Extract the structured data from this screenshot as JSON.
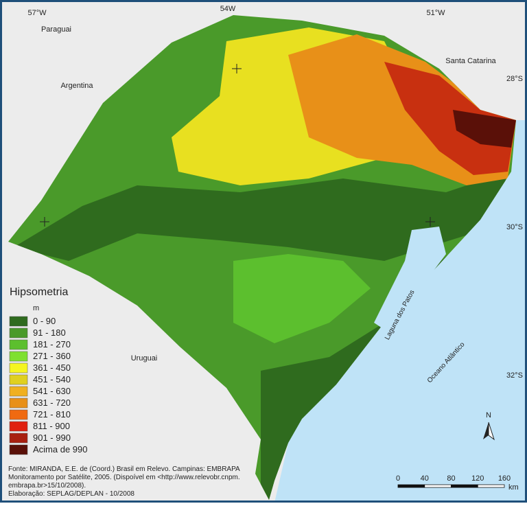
{
  "map": {
    "coordinates": {
      "lon": [
        "57°W",
        "54W",
        "51°W"
      ],
      "lat": [
        "28°S",
        "30°S",
        "32°S"
      ]
    },
    "places": [
      "Paraguai",
      "Argentina",
      "Santa Catarina",
      "Uruguai",
      "Laguna dos Patos",
      "Oceano Atlântico"
    ],
    "legend": {
      "title": "Hipsometria",
      "unit": "m",
      "classes": [
        {
          "label": "0 - 90",
          "color": "#2f6b1e"
        },
        {
          "label": "91 - 180",
          "color": "#4a9a2a"
        },
        {
          "label": "181 - 270",
          "color": "#5cbf2e"
        },
        {
          "label": "271 - 360",
          "color": "#7fe030"
        },
        {
          "label": "361 - 450",
          "color": "#f5f520"
        },
        {
          "label": "451 - 540",
          "color": "#e0d020"
        },
        {
          "label": "541 - 630",
          "color": "#f0b020"
        },
        {
          "label": "631 - 720",
          "color": "#e89018"
        },
        {
          "label": "721 - 810",
          "color": "#f06a10"
        },
        {
          "label": "811 - 900",
          "color": "#e02010"
        },
        {
          "label": "901 - 990",
          "color": "#a82010"
        },
        {
          "label": "Acima de 990",
          "color": "#5a1008"
        }
      ]
    },
    "source": [
      "Fonte: MIRANDA, E.E. de (Coord.) Brasil em Relevo. Campinas: EMBRAPA",
      "Monitoramento por Satélite, 2005. (Dispoível em <http://www.relevobr.cnpm.",
      "embrapa.br>15/10/2008).",
      "Elaboração: SEPLAG/DEPLAN - 10/2008"
    ],
    "north": "N",
    "scale": {
      "labels": [
        "0",
        "40",
        "80",
        "120",
        "160"
      ],
      "unit": "km"
    }
  }
}
